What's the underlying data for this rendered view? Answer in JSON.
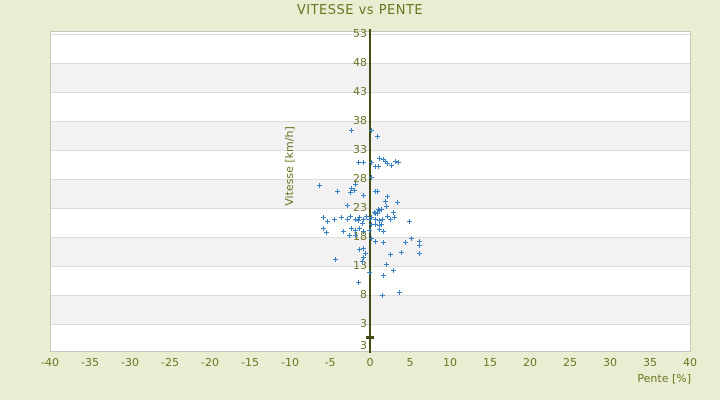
{
  "title": "VITESSE vs PENTE",
  "colors": {
    "background": "#e9eed2",
    "text_olive": "#6e7323",
    "axis_line": "#414d14",
    "marker_blue": "#3a80c4",
    "band_gray": "#f2f2f2",
    "band_white": "#ffffff",
    "grid_line": "#dcdcdc"
  },
  "chart_data": {
    "type": "scatter",
    "title": "VITESSE vs PENTE",
    "xlabel": "Pente [%]",
    "ylabel": "Vitesse [km/h]",
    "xlim": [
      -40,
      40
    ],
    "ylim": [
      -2,
      53
    ],
    "x_ticks": [
      "-40",
      "-35",
      "-30",
      "-25",
      "-20",
      "-15",
      "-10",
      "-5",
      "0",
      "5",
      "10",
      "15",
      "20",
      "25",
      "30",
      "35",
      "40"
    ],
    "y_ticks": [
      "53",
      "48",
      "43",
      "38",
      "33",
      "28",
      "23",
      "18",
      "13",
      "8",
      "3"
    ],
    "y_axis_bottom_label": "3",
    "grid": "horizontal-bands-alternating",
    "legend": "none",
    "marker": "plus-cross",
    "points": [
      [
        -2.4,
        36.4
      ],
      [
        0.1,
        36.3
      ],
      [
        0.8,
        35.4
      ],
      [
        0.1,
        28.2
      ],
      [
        -1.9,
        27.1
      ],
      [
        -6.4,
        26.9
      ],
      [
        -1.6,
        30.8
      ],
      [
        -0.9,
        30.8
      ],
      [
        0.1,
        30.9
      ],
      [
        1.1,
        31.6
      ],
      [
        1.5,
        31.4
      ],
      [
        1.75,
        31.1
      ],
      [
        2.1,
        30.6
      ],
      [
        0.5,
        30.2
      ],
      [
        0.9,
        30.2
      ],
      [
        2.5,
        30.4
      ],
      [
        3.1,
        31.1
      ],
      [
        3.4,
        30.9
      ],
      [
        -4.25,
        25.9
      ],
      [
        -2.5,
        26.3
      ],
      [
        -2.1,
        26.1
      ],
      [
        -2.6,
        25.6
      ],
      [
        -0.9,
        25.2
      ],
      [
        0.5,
        25.9
      ],
      [
        0.8,
        25.8
      ],
      [
        2.0,
        24.9
      ],
      [
        1.75,
        24.2
      ],
      [
        1.9,
        23.2
      ],
      [
        3.25,
        24.0
      ],
      [
        -2.9,
        23.5
      ],
      [
        0.9,
        22.7
      ],
      [
        1.25,
        22.7
      ],
      [
        0.4,
        22.3
      ],
      [
        1.0,
        22.5
      ],
      [
        0.75,
        22.1
      ],
      [
        2.75,
        22.3
      ],
      [
        0.5,
        22.0
      ],
      [
        0.1,
        21.3
      ],
      [
        0.5,
        21.1
      ],
      [
        1.0,
        20.9
      ],
      [
        1.4,
        21.1
      ],
      [
        0.1,
        20.2
      ],
      [
        0.6,
        20.1
      ],
      [
        1.1,
        19.9
      ],
      [
        1.25,
        20.2
      ],
      [
        -5.9,
        21.3
      ],
      [
        -5.5,
        20.6
      ],
      [
        -4.6,
        21.0
      ],
      [
        -3.75,
        21.4
      ],
      [
        -3.0,
        21.1
      ],
      [
        -2.6,
        21.6
      ],
      [
        -2.0,
        21.1
      ],
      [
        -1.5,
        21.4
      ],
      [
        -1.6,
        20.8
      ],
      [
        -1.0,
        21.1
      ],
      [
        -1.1,
        20.4
      ],
      [
        -0.6,
        21.6
      ],
      [
        -0.25,
        21.1
      ],
      [
        2.1,
        21.6
      ],
      [
        2.4,
        21.1
      ],
      [
        2.9,
        21.4
      ],
      [
        4.75,
        20.6
      ],
      [
        -6.0,
        19.5
      ],
      [
        -5.6,
        18.7
      ],
      [
        -3.5,
        19.0
      ],
      [
        -2.75,
        18.2
      ],
      [
        -2.5,
        19.5
      ],
      [
        -2.0,
        19.1
      ],
      [
        -1.4,
        19.5
      ],
      [
        -0.9,
        19.0
      ],
      [
        -0.25,
        19.1
      ],
      [
        1.0,
        19.3
      ],
      [
        1.5,
        19.0
      ],
      [
        -2.0,
        18.3
      ],
      [
        0.1,
        17.7
      ],
      [
        0.6,
        17.2
      ],
      [
        5.0,
        17.7
      ],
      [
        6.0,
        17.2
      ],
      [
        1.5,
        17.0
      ],
      [
        4.25,
        17.1
      ],
      [
        6.1,
        16.6
      ],
      [
        -1.4,
        15.8
      ],
      [
        -0.9,
        16.1
      ],
      [
        -0.75,
        15.1
      ],
      [
        -0.9,
        14.4
      ],
      [
        -1.1,
        13.7
      ],
      [
        -4.4,
        14.2
      ],
      [
        2.4,
        14.9
      ],
      [
        3.75,
        15.4
      ],
      [
        6.1,
        15.1
      ],
      [
        1.9,
        13.3
      ],
      [
        2.75,
        12.3
      ],
      [
        -0.25,
        11.8
      ],
      [
        1.5,
        11.4
      ],
      [
        -1.6,
        10.1
      ],
      [
        1.4,
        8.0
      ],
      [
        3.6,
        8.4
      ]
    ]
  }
}
